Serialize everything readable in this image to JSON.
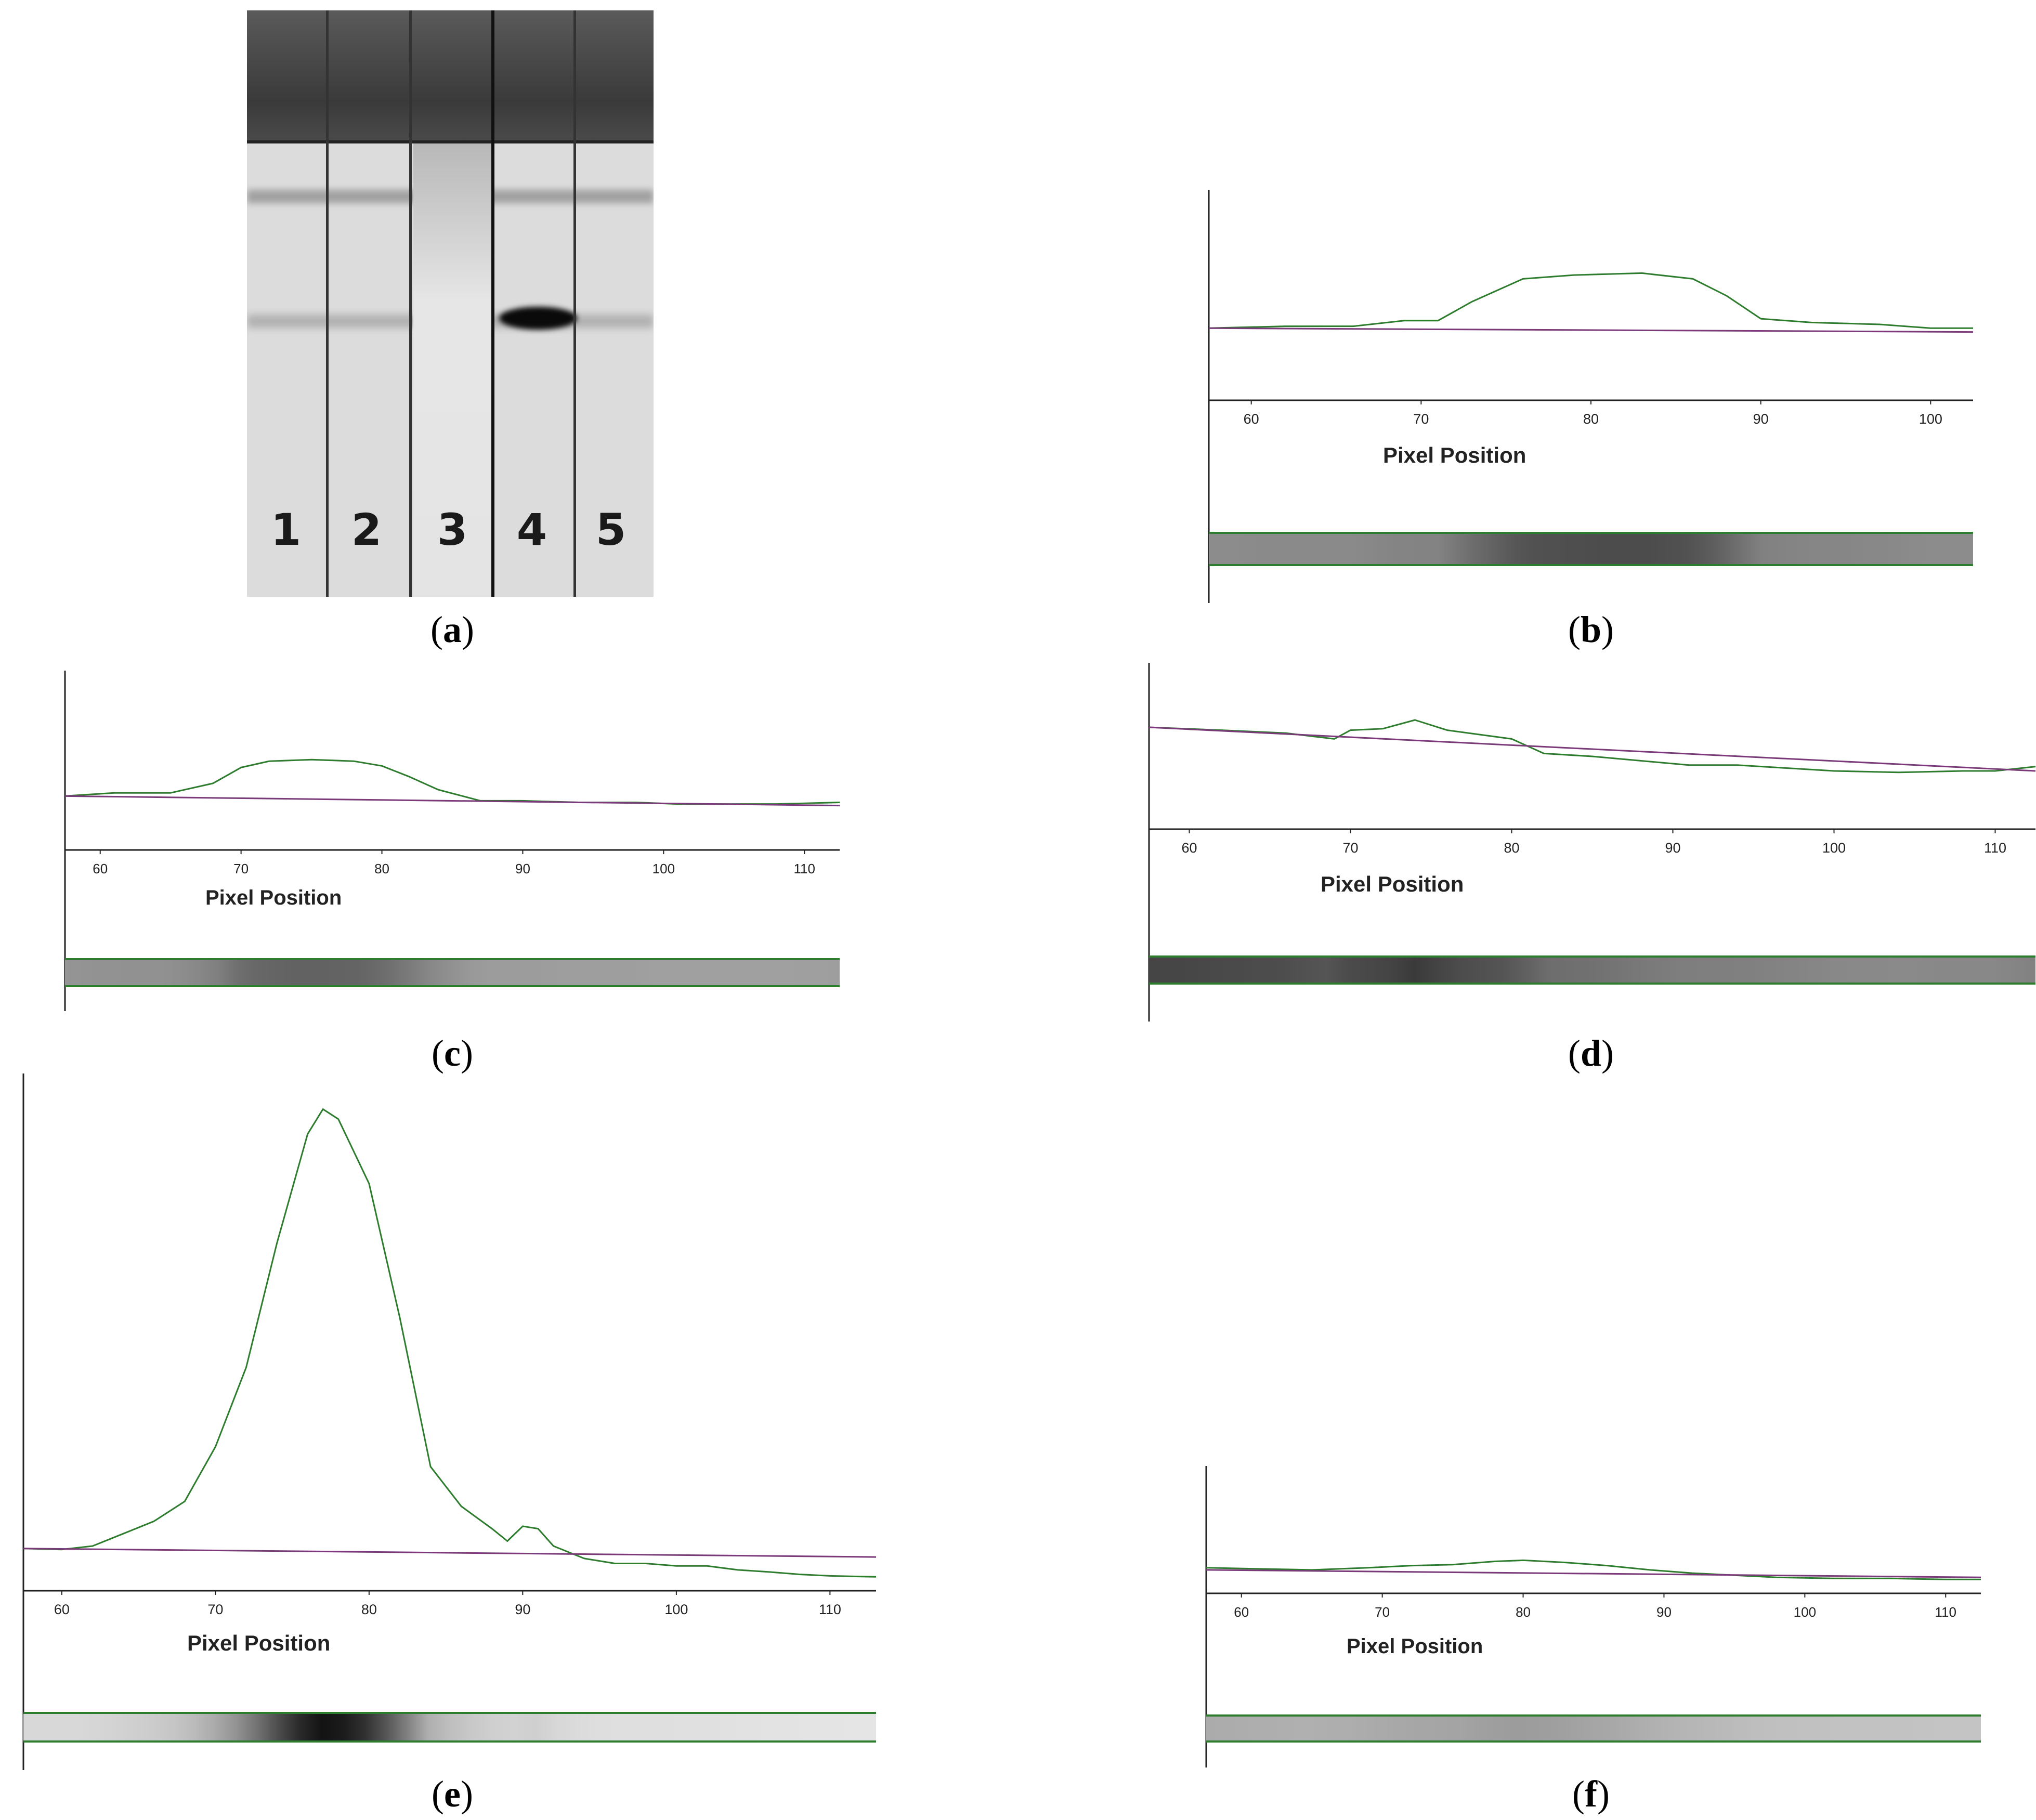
{
  "figure": {
    "captions": [
      "a",
      "b",
      "c",
      "d",
      "e",
      "f"
    ],
    "lane_labels": [
      "1",
      "2",
      "3",
      "4",
      "5"
    ]
  },
  "colors": {
    "profile": "#2e7d2e",
    "baseline": "#7a3a7a",
    "axis": "#222222",
    "strip_border": "#2e7d2e"
  },
  "chart_data": [
    {
      "type": "line",
      "panel": "b",
      "title": "",
      "xlabel": "Pixel Position",
      "ylabel": "",
      "xticks": [
        60,
        70,
        80,
        90,
        100
      ],
      "xlim": [
        57.5,
        102.5
      ],
      "ylim": [
        0,
        100
      ],
      "series": [
        {
          "role": "profile",
          "x": [
            57.5,
            62,
            66,
            69,
            71,
            73,
            76,
            79,
            83,
            86,
            88,
            90,
            93,
            97,
            100,
            102.5
          ],
          "y": [
            38,
            39,
            39,
            42,
            42,
            52,
            64,
            66,
            67,
            64,
            55,
            43,
            41,
            40,
            38,
            38
          ]
        },
        {
          "role": "baseline",
          "x": [
            57.5,
            102.5
          ],
          "y": [
            38,
            36
          ]
        }
      ]
    },
    {
      "type": "line",
      "panel": "c",
      "title": "",
      "xlabel": "Pixel Position",
      "ylabel": "",
      "xticks": [
        60,
        70,
        80,
        90,
        100,
        110
      ],
      "xlim": [
        57.5,
        112.5
      ],
      "ylim": [
        0,
        100
      ],
      "series": [
        {
          "role": "profile",
          "x": [
            57.5,
            61,
            65,
            68,
            70,
            72,
            75,
            78,
            80,
            82,
            84,
            87,
            90,
            94,
            98,
            101,
            103,
            105,
            108,
            112.5
          ],
          "y": [
            34,
            36,
            36,
            42,
            52,
            56,
            57,
            56,
            53,
            46,
            38,
            31,
            31,
            30,
            30,
            29,
            29,
            29,
            29,
            30
          ]
        },
        {
          "role": "baseline",
          "x": [
            57.5,
            112.5
          ],
          "y": [
            34,
            28
          ]
        }
      ]
    },
    {
      "type": "line",
      "panel": "d",
      "title": "",
      "xlabel": "Pixel Position",
      "ylabel": "",
      "xticks": [
        60,
        70,
        80,
        90,
        100,
        110
      ],
      "xlim": [
        57.5,
        112.5
      ],
      "ylim": [
        0,
        100
      ],
      "series": [
        {
          "role": "profile",
          "x": [
            57.5,
            62,
            66,
            69,
            70,
            72,
            74,
            76,
            78,
            80,
            82,
            85,
            88,
            91,
            94,
            97,
            100,
            104,
            108,
            110,
            112.5
          ],
          "y": [
            70,
            68,
            66,
            62,
            68,
            69,
            75,
            68,
            65,
            62,
            52,
            50,
            47,
            44,
            44,
            42,
            40,
            39,
            40,
            40,
            43
          ]
        },
        {
          "role": "baseline",
          "x": [
            57.5,
            112.5
          ],
          "y": [
            70,
            40
          ]
        }
      ]
    },
    {
      "type": "line",
      "panel": "e",
      "title": "",
      "xlabel": "Pixel Position",
      "ylabel": "",
      "xticks": [
        60,
        70,
        80,
        90,
        100,
        110
      ],
      "xlim": [
        57.5,
        113
      ],
      "ylim": [
        0,
        100
      ],
      "series": [
        {
          "role": "profile",
          "x": [
            57.5,
            60,
            62,
            64,
            66,
            68,
            70,
            72,
            74,
            76,
            77,
            78,
            80,
            82,
            84,
            86,
            88,
            89,
            90,
            91,
            92,
            94,
            96,
            98,
            100,
            102,
            104,
            106,
            108,
            110,
            113
          ],
          "y": [
            8.5,
            8.3,
            9,
            11.5,
            14,
            18,
            29,
            45,
            70,
            92,
            97,
            95,
            82,
            55,
            25,
            17,
            12.5,
            10,
            13,
            12.5,
            9,
            6.5,
            5.5,
            5.5,
            5,
            5,
            4.2,
            3.8,
            3.3,
            3,
            2.8
          ]
        },
        {
          "role": "baseline",
          "x": [
            57.5,
            113
          ],
          "y": [
            8.5,
            6.8
          ]
        }
      ]
    },
    {
      "type": "line",
      "panel": "f",
      "title": "",
      "xlabel": "Pixel Position",
      "ylabel": "",
      "xticks": [
        60,
        70,
        80,
        90,
        100,
        110
      ],
      "xlim": [
        57.5,
        112.5
      ],
      "ylim": [
        0,
        100
      ],
      "series": [
        {
          "role": "profile",
          "x": [
            57.5,
            61,
            65,
            69,
            72,
            75,
            78,
            80,
            83,
            86,
            89,
            92,
            95,
            98,
            102,
            106,
            110,
            112.5
          ],
          "y": [
            24,
            23,
            22,
            24,
            26,
            27,
            30,
            31,
            29,
            26,
            22,
            19,
            17,
            15,
            14,
            14,
            13,
            13
          ]
        },
        {
          "role": "baseline",
          "x": [
            57.5,
            112.5
          ],
          "y": [
            22,
            15
          ]
        }
      ]
    }
  ]
}
